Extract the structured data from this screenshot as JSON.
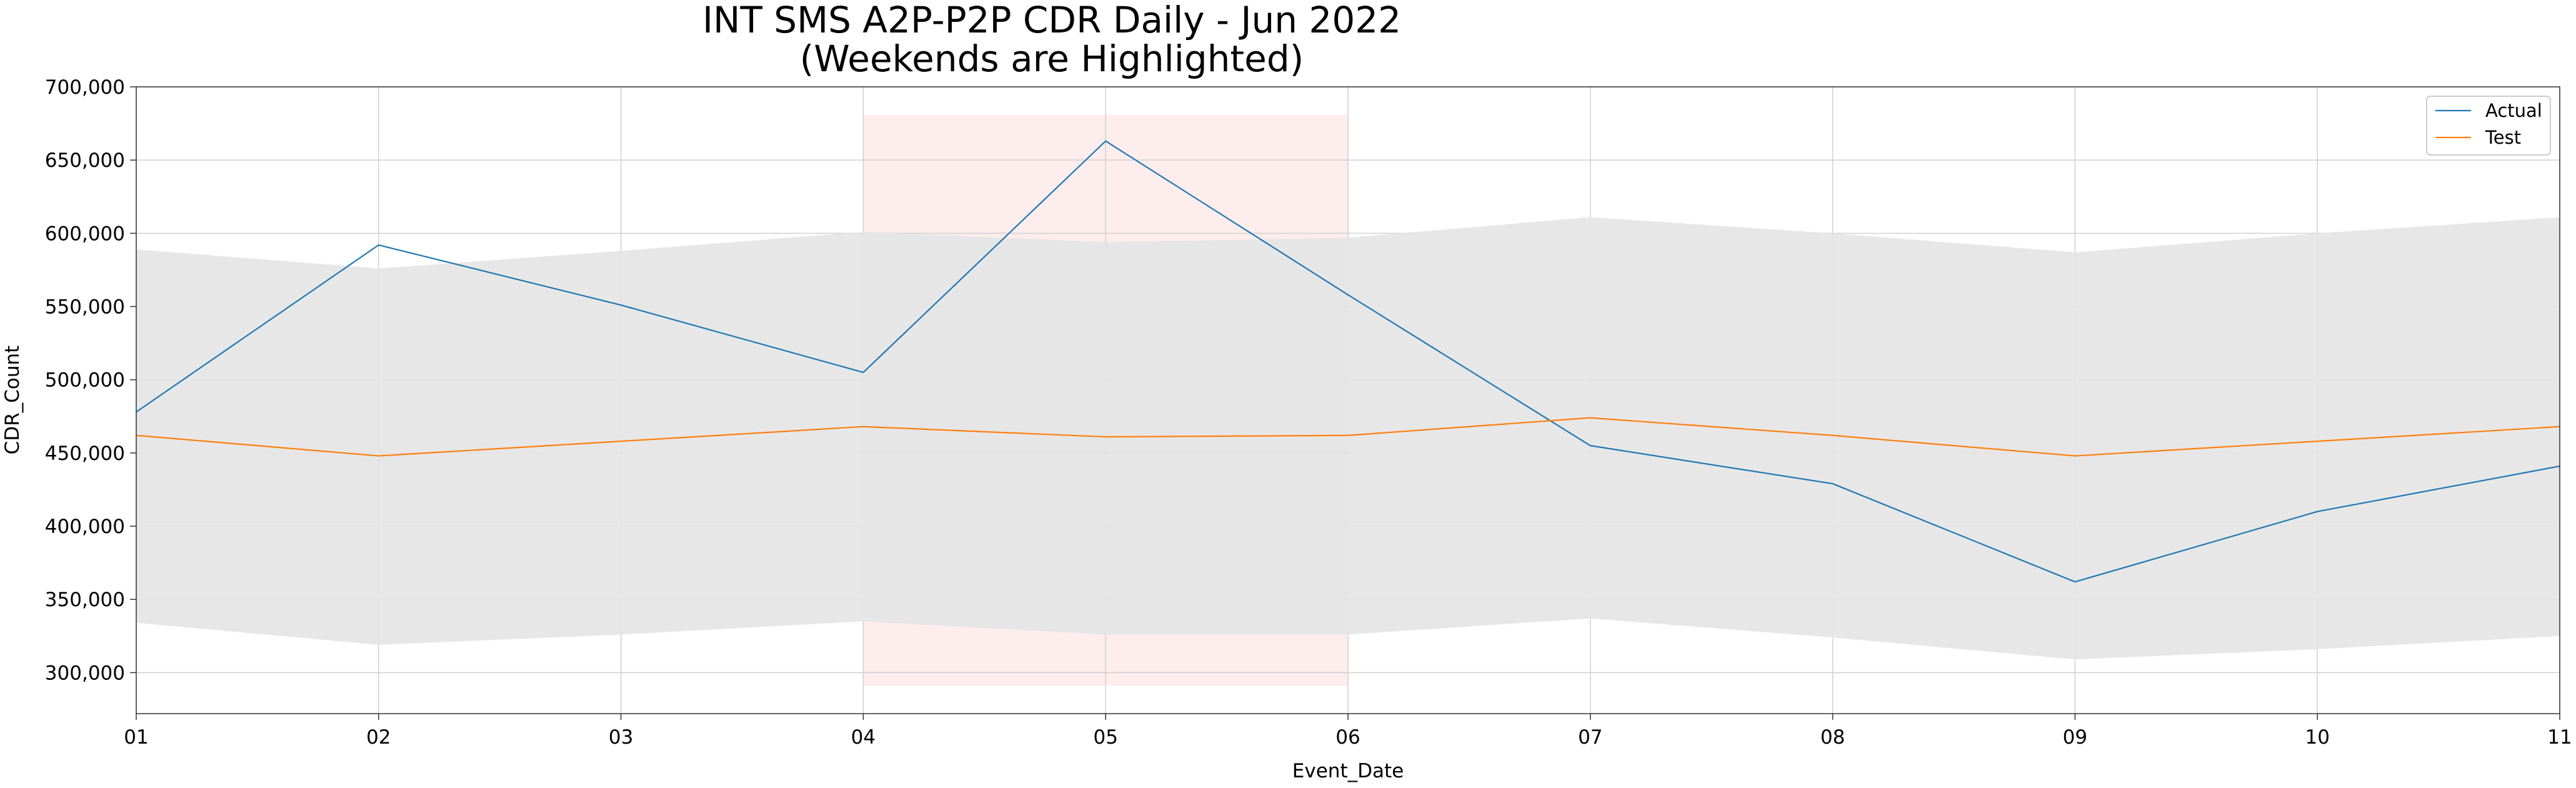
{
  "chart_data": {
    "type": "line",
    "title": "INT SMS A2P-P2P CDR Daily - Jun 2022",
    "subtitle": "(Weekends are Highlighted)",
    "xlabel": "Event_Date",
    "ylabel": "CDR_Count",
    "categories": [
      "01",
      "02",
      "03",
      "04",
      "05",
      "06",
      "07",
      "08",
      "09",
      "10",
      "11"
    ],
    "ylim": [
      272000,
      700000
    ],
    "yticks": [
      300000,
      350000,
      400000,
      450000,
      500000,
      550000,
      600000,
      650000,
      700000
    ],
    "ytick_labels": [
      "300,000",
      "350,000",
      "400,000",
      "450,000",
      "500,000",
      "550,000",
      "600,000",
      "650,000",
      "700,000"
    ],
    "grid": true,
    "legend_position": "top-right",
    "series": [
      {
        "name": "Actual",
        "color": "#1f77b4",
        "values": [
          478000,
          592000,
          551000,
          505000,
          663000,
          558000,
          455000,
          429000,
          362000,
          410000,
          441000
        ]
      },
      {
        "name": "Test",
        "color": "#ff7f0e",
        "values": [
          462000,
          448000,
          458000,
          468000,
          461000,
          462000,
          474000,
          462000,
          448000,
          458000,
          468000
        ]
      }
    ],
    "band": {
      "color": "#e4e4e4",
      "upper": [
        589000,
        576000,
        588000,
        601000,
        594000,
        597000,
        611000,
        600000,
        587000,
        600000,
        611000
      ],
      "lower": [
        334000,
        319000,
        326000,
        335000,
        326000,
        326000,
        337000,
        324000,
        309000,
        316000,
        325000
      ]
    },
    "weekend_highlight": {
      "color": "#fde8e8",
      "x_start": "04",
      "x_end": "06",
      "y_range": [
        291000,
        681000
      ]
    }
  }
}
